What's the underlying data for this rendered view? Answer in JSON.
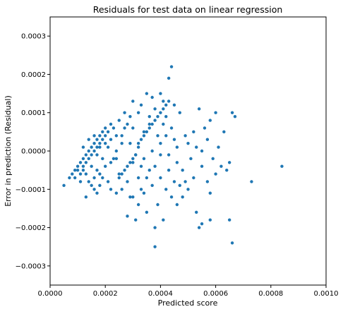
{
  "chart_data": {
    "type": "scatter",
    "title": "Residuals for test data on linear regression",
    "xlabel": "Predicted score",
    "ylabel": "Error in prediction (Residual)",
    "xlim": [
      0.0,
      0.001
    ],
    "ylim": [
      -0.00035,
      0.00035
    ],
    "x_ticks": [
      "0.0000",
      "0.0002",
      "0.0004",
      "0.0006",
      "0.0008",
      "0.0010"
    ],
    "x_tick_values": [
      0.0,
      0.0002,
      0.0004,
      0.0006,
      0.0008,
      0.001
    ],
    "y_ticks": [
      "−0.0003",
      "−0.0002",
      "−0.0001",
      "0.0000",
      "0.0001",
      "0.0002",
      "0.0003"
    ],
    "y_tick_values": [
      -0.0003,
      -0.0002,
      -0.0001,
      0.0,
      0.0001,
      0.0002,
      0.0003
    ],
    "grid": false,
    "marker_color": "#1f77b4",
    "points": [
      [
        5e-05,
        -9e-05
      ],
      [
        7e-05,
        -7e-05
      ],
      [
        8e-05,
        -6e-05
      ],
      [
        9e-05,
        -7e-05
      ],
      [
        0.0001,
        -4e-05
      ],
      [
        0.0001,
        -5e-05
      ],
      [
        0.00011,
        -3e-05
      ],
      [
        0.00011,
        -6e-05
      ],
      [
        0.00012,
        -2e-05
      ],
      [
        0.00012,
        -4e-05
      ],
      [
        0.00013,
        -1e-05
      ],
      [
        0.00013,
        -3e-05
      ],
      [
        0.00014,
        0.0
      ],
      [
        0.00014,
        -2e-05
      ],
      [
        0.00015,
        1e-05
      ],
      [
        0.00015,
        -1e-05
      ],
      [
        0.00016,
        2e-05
      ],
      [
        0.00016,
        0.0
      ],
      [
        0.00017,
        3e-05
      ],
      [
        0.00017,
        1e-05
      ],
      [
        0.00018,
        4e-05
      ],
      [
        0.00018,
        2e-05
      ],
      [
        0.00019,
        5e-05
      ],
      [
        0.00019,
        3e-05
      ],
      [
        0.0002,
        6e-05
      ],
      [
        0.0002,
        4e-05
      ],
      [
        0.00021,
        5e-05
      ],
      [
        0.00022,
        7e-05
      ],
      [
        0.00023,
        6e-05
      ],
      [
        0.00012,
        -5e-05
      ],
      [
        0.00013,
        -6e-05
      ],
      [
        0.00014,
        -8e-05
      ],
      [
        0.00016,
        -7e-05
      ],
      [
        0.00017,
        -5e-05
      ],
      [
        0.00018,
        -6e-05
      ],
      [
        0.00011,
        -8e-05
      ],
      [
        9e-05,
        -5e-05
      ],
      [
        0.00012,
        1e-05
      ],
      [
        0.00014,
        3e-05
      ],
      [
        0.00016,
        4e-05
      ],
      [
        0.00018,
        1e-05
      ],
      [
        0.0002,
        2e-05
      ],
      [
        0.00021,
        1e-05
      ],
      [
        0.00022,
        3e-05
      ],
      [
        0.00019,
        -2e-05
      ],
      [
        0.00017,
        -1e-05
      ],
      [
        0.00015,
        -4e-05
      ],
      [
        0.00013,
        -0.00012
      ],
      [
        0.00016,
        -0.0001
      ],
      [
        0.00018,
        -9e-05
      ],
      [
        0.0002,
        -4e-05
      ],
      [
        0.00022,
        -3e-05
      ],
      [
        0.00024,
        4e-05
      ],
      [
        0.00025,
        8e-05
      ],
      [
        0.00027,
        0.0001
      ],
      [
        0.00028,
        7e-05
      ],
      [
        0.00026,
        2e-05
      ],
      [
        0.00024,
        -2e-05
      ],
      [
        0.00025,
        -6e-05
      ],
      [
        0.00028,
        -8e-05
      ],
      [
        0.0003,
        -3e-05
      ],
      [
        0.0003,
        6e-05
      ],
      [
        0.00032,
        0.0001
      ],
      [
        0.00033,
        0.00012
      ],
      [
        0.00035,
        0.00015
      ],
      [
        0.00036,
        9e-05
      ],
      [
        0.00034,
        5e-05
      ],
      [
        0.00032,
        2e-05
      ],
      [
        0.00031,
        -1e-05
      ],
      [
        0.00033,
        -4e-05
      ],
      [
        0.00035,
        -7e-05
      ],
      [
        0.00033,
        -0.0001
      ],
      [
        0.00032,
        -0.00014
      ],
      [
        0.00035,
        -0.00016
      ],
      [
        0.00031,
        -0.00018
      ],
      [
        0.00028,
        -0.00017
      ],
      [
        0.00026,
        -0.0001
      ],
      [
        0.00029,
        -0.00012
      ],
      [
        0.0003,
        -0.00012
      ],
      [
        0.00038,
        -0.0002
      ],
      [
        0.00038,
        -0.00025
      ],
      [
        0.00041,
        -0.00018
      ],
      [
        0.00039,
        -0.00014
      ],
      [
        0.00042,
        -0.0001
      ],
      [
        0.0004,
        -7e-05
      ],
      [
        0.00038,
        -4e-05
      ],
      [
        0.00037,
        0.0
      ],
      [
        0.0004,
        2e-05
      ],
      [
        0.00042,
        4e-05
      ],
      [
        0.00044,
        6e-05
      ],
      [
        0.00045,
        3e-05
      ],
      [
        0.00043,
        -1e-05
      ],
      [
        0.00046,
        -3e-05
      ],
      [
        0.00048,
        -5e-05
      ],
      [
        0.00047,
        -9e-05
      ],
      [
        0.00044,
        -0.00012
      ],
      [
        0.00046,
        -0.00014
      ],
      [
        0.0005,
        -0.0001
      ],
      [
        0.00052,
        -7e-05
      ],
      [
        0.00055,
        -4e-05
      ],
      [
        0.00057,
        -8e-05
      ],
      [
        0.00058,
        -0.00011
      ],
      [
        0.0006,
        -6e-05
      ],
      [
        0.00062,
        -4e-05
      ],
      [
        0.00064,
        -5e-05
      ],
      [
        0.00055,
        0.0
      ],
      [
        0.0005,
        2e-05
      ],
      [
        0.00052,
        5e-05
      ],
      [
        0.00056,
        6e-05
      ],
      [
        0.00058,
        8e-05
      ],
      [
        0.0006,
        0.0001
      ],
      [
        0.00054,
        0.00011
      ],
      [
        0.00047,
        0.0001
      ],
      [
        0.00045,
        0.00012
      ],
      [
        0.00041,
        0.00013
      ],
      [
        0.0004,
        0.00015
      ],
      [
        0.00043,
        0.00019
      ],
      [
        0.00044,
        0.00022
      ],
      [
        0.00037,
        0.00014
      ],
      [
        0.00036,
        7e-05
      ],
      [
        0.00038,
        0.00011
      ],
      [
        0.0003,
        0.00013
      ],
      [
        0.00029,
        9e-05
      ],
      [
        0.00027,
        6e-05
      ],
      [
        0.00066,
        0.0001
      ],
      [
        0.00067,
        9e-05
      ],
      [
        0.00063,
        5e-05
      ],
      [
        0.00061,
        1e-05
      ],
      [
        0.00065,
        -3e-05
      ],
      [
        0.00065,
        -0.00018
      ],
      [
        0.00066,
        -0.00024
      ],
      [
        0.00058,
        -0.00018
      ],
      [
        0.00054,
        -0.0002
      ],
      [
        0.00055,
        -0.00019
      ],
      [
        0.00053,
        -0.00016
      ],
      [
        0.00048,
        -0.00012
      ],
      [
        0.00049,
        -8e-05
      ],
      [
        0.00073,
        -8e-05
      ],
      [
        0.00084,
        -4e-05
      ],
      [
        0.00023,
        -2e-05
      ],
      [
        0.00024,
        0.0
      ],
      [
        0.00026,
        4e-05
      ],
      [
        0.00029,
        2e-05
      ],
      [
        0.00034,
        -2e-05
      ],
      [
        0.00036,
        -5e-05
      ],
      [
        0.00039,
        4e-05
      ],
      [
        0.00041,
        7e-05
      ],
      [
        0.0004,
        -1e-05
      ],
      [
        0.00042,
        9e-05
      ],
      [
        0.00046,
        1e-05
      ],
      [
        0.00049,
        4e-05
      ],
      [
        0.00051,
        -2e-05
      ],
      [
        0.00053,
        1e-05
      ],
      [
        0.00057,
        3e-05
      ],
      [
        0.00059,
        -2e-05
      ],
      [
        0.00032,
        -7e-05
      ],
      [
        0.00034,
        -0.00011
      ],
      [
        0.00037,
        -9e-05
      ],
      [
        0.00043,
        -5e-05
      ],
      [
        0.00045,
        -8e-05
      ],
      [
        0.0003,
        -2e-05
      ],
      [
        0.00032,
        1e-05
      ],
      [
        0.00033,
        3e-05
      ],
      [
        0.00034,
        4e-05
      ],
      [
        0.00035,
        5e-05
      ],
      [
        0.00036,
        6e-05
      ],
      [
        0.00037,
        7e-05
      ],
      [
        0.00038,
        8e-05
      ],
      [
        0.00039,
        9e-05
      ],
      [
        0.0004,
        0.0001
      ],
      [
        0.00041,
        0.00011
      ],
      [
        0.00042,
        0.00012
      ],
      [
        0.00043,
        0.00013
      ],
      [
        0.00028,
        -4e-05
      ],
      [
        0.00027,
        -5e-05
      ],
      [
        0.00026,
        -6e-05
      ],
      [
        0.00025,
        -7e-05
      ],
      [
        0.00029,
        -3e-05
      ],
      [
        0.00031,
        -1e-05
      ],
      [
        0.00021,
        -8e-05
      ],
      [
        0.00022,
        -0.0001
      ],
      [
        0.00024,
        -0.00011
      ],
      [
        0.00019,
        -7e-05
      ],
      [
        0.00015,
        -9e-05
      ],
      [
        0.00017,
        -0.00011
      ]
    ]
  }
}
